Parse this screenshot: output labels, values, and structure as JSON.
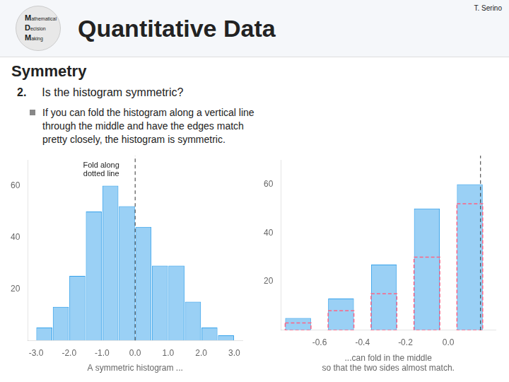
{
  "title": "Quantitative Data",
  "annotations": [
    "T. Serino",
    "Mathematical",
    "Decision",
    "Making",
    "Symmetry",
    "2.",
    "Is the histogram symmetric?",
    "If you can fold the histogram along a vertical line\nthrough the middle and have the edges match\npretty closely, the histogram is symmetric."
  ],
  "chart_data": [
    {
      "type": "histogram",
      "bins": [
        -3.0,
        -2.5,
        -2.0,
        -1.5,
        -1.0,
        -0.5,
        0.0,
        0.5,
        1.0,
        1.5,
        2.0,
        2.5,
        3.0
      ],
      "values": [
        5,
        13,
        25,
        50,
        60,
        52,
        44,
        29,
        29,
        15,
        5,
        2
      ],
      "xlabel": "A symmetric histogram ...",
      "xlim": [
        -3.25,
        3.25
      ],
      "xticks": [
        {
          "value": -3,
          "label": "-3.0"
        },
        {
          "value": -2,
          "label": "-2.0"
        },
        {
          "value": -1,
          "label": "-1.0"
        },
        {
          "value": 0,
          "label": "0.0"
        },
        {
          "value": 1,
          "label": "1.0"
        },
        {
          "value": 2,
          "label": "2.0"
        },
        {
          "value": 3,
          "label": "3.0"
        }
      ],
      "ylim": [
        0,
        70
      ],
      "yticks": [
        20,
        40,
        60
      ],
      "annotations": [
        "Fold along\ndotted line"
      ],
      "fold_x": 0.0,
      "grid": false
    },
    {
      "type": "bar",
      "x": [
        -0.7,
        -0.5,
        -0.3,
        -0.1,
        0.1
      ],
      "series": [
        {
          "values": [
            5,
            13,
            27,
            50,
            60
          ]
        },
        {
          "values": [
            3,
            8,
            15,
            30,
            52
          ],
          "line_style": "dashed"
        }
      ],
      "xlabel": "...can fold in the middle\nso that the two sides almost match.",
      "xlim": [
        -0.78,
        0.22
      ],
      "xticks": [
        -0.6,
        -0.4,
        -0.2,
        {
          "value": 0,
          "label": "0.0"
        }
      ],
      "ylim": [
        0,
        70
      ],
      "yticks": [
        20,
        40,
        60
      ],
      "fold_x": 0.15,
      "grid": false
    }
  ]
}
